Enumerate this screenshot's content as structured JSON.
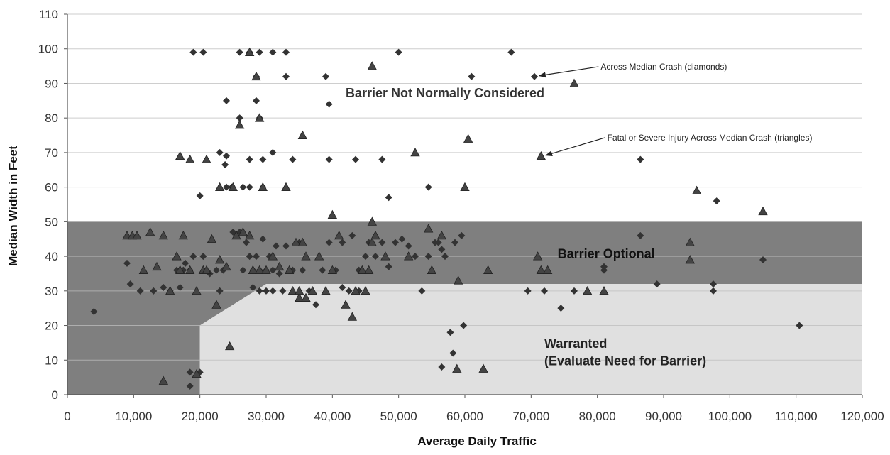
{
  "chart_data": {
    "type": "scatter",
    "xlabel": "Average Daily Traffic",
    "ylabel": "Median Width in Feet",
    "xlim": [
      0,
      120000
    ],
    "ylim": [
      0,
      110
    ],
    "x_ticks": [
      0,
      10000,
      20000,
      30000,
      40000,
      50000,
      60000,
      70000,
      80000,
      90000,
      100000,
      110000,
      120000
    ],
    "x_tick_labels": [
      "0",
      "10,000",
      "20,000",
      "30,000",
      "40,000",
      "50,000",
      "60,000",
      "70,000",
      "80,000",
      "90,000",
      "100,000",
      "110,000",
      "120,000"
    ],
    "y_ticks": [
      0,
      10,
      20,
      30,
      40,
      50,
      60,
      70,
      80,
      90,
      100,
      110
    ],
    "y_tick_labels": [
      "0",
      "10",
      "20",
      "30",
      "40",
      "50",
      "60",
      "70",
      "80",
      "90",
      "100",
      "110"
    ],
    "grid": "horizontal",
    "colors": {
      "background": "#ffffff",
      "optional_zone": "#7f7f7f",
      "warranted_zone": "#e0e0e0",
      "marker": "#333333",
      "grid": "#bdbdbd"
    },
    "regions": [
      {
        "label": "Barrier Optional",
        "points": [
          [
            0,
            0
          ],
          [
            0,
            50
          ],
          [
            120000,
            50
          ],
          [
            120000,
            32
          ],
          [
            30000,
            32
          ],
          [
            20000,
            20
          ],
          [
            20000,
            0
          ]
        ]
      },
      {
        "label": "Warranted",
        "sublabel": "(Evaluate Need for Barrier)",
        "points": [
          [
            20000,
            0
          ],
          [
            20000,
            20
          ],
          [
            30000,
            32
          ],
          [
            120000,
            32
          ],
          [
            120000,
            0
          ]
        ]
      }
    ],
    "region_text": [
      {
        "text": "Barrier Not Normally Considered",
        "x": 57000,
        "y": 86,
        "color": "#333333",
        "weight": "bold"
      },
      {
        "text": "Barrier Optional",
        "x": 74000,
        "y": 39.5,
        "color": "#111111",
        "weight": "bold"
      },
      {
        "text": "Warranted",
        "x": 72000,
        "y": 13.5,
        "color": "#222222",
        "weight": "bold"
      },
      {
        "text": "(Evaluate Need for Barrier)",
        "x": 72000,
        "y": 8.5,
        "color": "#222222",
        "weight": "bold"
      }
    ],
    "annotations": [
      {
        "text": "Across Median Crash (diamonds)",
        "text_x": 80500,
        "text_y": 94,
        "arrow_x": 70800,
        "arrow_y": 92
      },
      {
        "text": "Fatal or Severe Injury Across Median Crash  (triangles)",
        "text_x": 81500,
        "text_y": 73.5,
        "arrow_x": 71800,
        "arrow_y": 69
      }
    ],
    "series": [
      {
        "marker": "diamond",
        "points": [
          [
            4000,
            24
          ],
          [
            9000,
            38
          ],
          [
            9500,
            32
          ],
          [
            11000,
            30
          ],
          [
            13000,
            30
          ],
          [
            14500,
            31
          ],
          [
            15500,
            30
          ],
          [
            16500,
            36
          ],
          [
            17000,
            31
          ],
          [
            17500,
            36
          ],
          [
            17800,
            38
          ],
          [
            18500,
            36
          ],
          [
            19000,
            99
          ],
          [
            20500,
            99
          ],
          [
            26000,
            99
          ],
          [
            27500,
            99
          ],
          [
            29000,
            99
          ],
          [
            31000,
            99
          ],
          [
            33000,
            99
          ],
          [
            50000,
            99
          ],
          [
            67000,
            99
          ],
          [
            28500,
            92
          ],
          [
            33000,
            92
          ],
          [
            39000,
            92
          ],
          [
            61000,
            92
          ],
          [
            70500,
            92
          ],
          [
            24000,
            85
          ],
          [
            28500,
            85
          ],
          [
            39500,
            84
          ],
          [
            26000,
            80
          ],
          [
            29000,
            80
          ],
          [
            23000,
            70
          ],
          [
            24000,
            69
          ],
          [
            31000,
            70
          ],
          [
            47500,
            68
          ],
          [
            27500,
            68
          ],
          [
            29500,
            68
          ],
          [
            34000,
            68
          ],
          [
            39500,
            68
          ],
          [
            43500,
            68
          ],
          [
            86500,
            68
          ],
          [
            23800,
            66.5
          ],
          [
            24000,
            60
          ],
          [
            24800,
            60
          ],
          [
            26500,
            60
          ],
          [
            27500,
            60
          ],
          [
            29500,
            60
          ],
          [
            54500,
            60
          ],
          [
            20000,
            57.5
          ],
          [
            48500,
            57
          ],
          [
            98000,
            56
          ],
          [
            19000,
            40
          ],
          [
            20500,
            40
          ],
          [
            21500,
            35
          ],
          [
            22500,
            36
          ],
          [
            23000,
            30
          ],
          [
            23500,
            36
          ],
          [
            25000,
            47
          ],
          [
            26000,
            47
          ],
          [
            26500,
            36
          ],
          [
            27000,
            44
          ],
          [
            27500,
            40
          ],
          [
            28000,
            36
          ],
          [
            28500,
            40
          ],
          [
            29000,
            36
          ],
          [
            29500,
            45
          ],
          [
            30000,
            36
          ],
          [
            30500,
            40
          ],
          [
            31000,
            36
          ],
          [
            31500,
            43
          ],
          [
            32000,
            35
          ],
          [
            33000,
            43
          ],
          [
            34000,
            36
          ],
          [
            35000,
            44
          ],
          [
            35500,
            36
          ],
          [
            36500,
            30
          ],
          [
            37500,
            26
          ],
          [
            38500,
            36
          ],
          [
            39500,
            44
          ],
          [
            40500,
            36
          ],
          [
            41500,
            44
          ],
          [
            42500,
            30
          ],
          [
            43000,
            46
          ],
          [
            44000,
            36
          ],
          [
            45000,
            40
          ],
          [
            45500,
            44
          ],
          [
            46500,
            40
          ],
          [
            47500,
            44
          ],
          [
            48500,
            37
          ],
          [
            49500,
            44
          ],
          [
            50500,
            45
          ],
          [
            51500,
            43
          ],
          [
            52500,
            40
          ],
          [
            53500,
            30
          ],
          [
            54500,
            40
          ],
          [
            55500,
            44
          ],
          [
            56500,
            42
          ],
          [
            57000,
            40
          ],
          [
            58500,
            44
          ],
          [
            59500,
            46
          ],
          [
            28000,
            31
          ],
          [
            29000,
            30
          ],
          [
            30000,
            30
          ],
          [
            31000,
            30
          ],
          [
            32500,
            30
          ],
          [
            41500,
            31
          ],
          [
            44000,
            30
          ],
          [
            69500,
            30
          ],
          [
            72000,
            30
          ],
          [
            74500,
            25
          ],
          [
            76500,
            30
          ],
          [
            81000,
            36
          ],
          [
            81000,
            37
          ],
          [
            86500,
            46
          ],
          [
            89000,
            32
          ],
          [
            97500,
            30
          ],
          [
            97500,
            32
          ],
          [
            105000,
            39
          ],
          [
            110500,
            20
          ],
          [
            56500,
            8
          ],
          [
            57800,
            18
          ],
          [
            58200,
            12
          ],
          [
            59800,
            20
          ],
          [
            18500,
            6.5
          ],
          [
            18500,
            2.5
          ],
          [
            20000,
            6.5
          ],
          [
            56000,
            44
          ]
        ]
      },
      {
        "marker": "triangle",
        "points": [
          [
            14500,
            4
          ],
          [
            24500,
            14
          ],
          [
            19500,
            6
          ],
          [
            43000,
            22.5
          ],
          [
            58800,
            7.5
          ],
          [
            62800,
            7.5
          ],
          [
            9000,
            46
          ],
          [
            9800,
            46
          ],
          [
            10500,
            46
          ],
          [
            11500,
            36
          ],
          [
            12500,
            47
          ],
          [
            13500,
            37
          ],
          [
            14500,
            46
          ],
          [
            15500,
            30
          ],
          [
            16500,
            40
          ],
          [
            17000,
            36
          ],
          [
            17500,
            46
          ],
          [
            18500,
            36
          ],
          [
            19500,
            30
          ],
          [
            20500,
            36
          ],
          [
            21000,
            36
          ],
          [
            21800,
            45
          ],
          [
            22500,
            26
          ],
          [
            23000,
            39
          ],
          [
            24000,
            37
          ],
          [
            25500,
            46
          ],
          [
            26500,
            47
          ],
          [
            27500,
            46
          ],
          [
            28000,
            36
          ],
          [
            29000,
            36
          ],
          [
            30000,
            36
          ],
          [
            31000,
            40
          ],
          [
            32000,
            37
          ],
          [
            33500,
            36
          ],
          [
            34500,
            44
          ],
          [
            35500,
            44
          ],
          [
            36000,
            40
          ],
          [
            37000,
            30
          ],
          [
            38000,
            40
          ],
          [
            39000,
            30
          ],
          [
            40000,
            36
          ],
          [
            41000,
            46
          ],
          [
            42000,
            26
          ],
          [
            43500,
            30
          ],
          [
            44500,
            36
          ],
          [
            45000,
            30
          ],
          [
            45500,
            36
          ],
          [
            46000,
            44
          ],
          [
            46500,
            46
          ],
          [
            48000,
            40
          ],
          [
            51500,
            40
          ],
          [
            54500,
            48
          ],
          [
            55000,
            36
          ],
          [
            56500,
            46
          ],
          [
            59000,
            33
          ],
          [
            63500,
            36
          ],
          [
            71000,
            40
          ],
          [
            71500,
            36
          ],
          [
            72500,
            36
          ],
          [
            78500,
            30
          ],
          [
            81000,
            30
          ],
          [
            94000,
            44
          ],
          [
            94000,
            39
          ],
          [
            95000,
            59
          ],
          [
            105000,
            53
          ],
          [
            34000,
            30
          ],
          [
            35000,
            28
          ],
          [
            36000,
            28
          ],
          [
            35000,
            30
          ],
          [
            17000,
            69
          ],
          [
            18500,
            68
          ],
          [
            21000,
            68
          ],
          [
            23000,
            60
          ],
          [
            25000,
            60
          ],
          [
            26000,
            78
          ],
          [
            27500,
            99
          ],
          [
            28500,
            92
          ],
          [
            29000,
            80
          ],
          [
            29500,
            60
          ],
          [
            33000,
            60
          ],
          [
            35500,
            75
          ],
          [
            40000,
            52
          ],
          [
            46000,
            50
          ],
          [
            52500,
            70
          ],
          [
            60500,
            74
          ],
          [
            71500,
            69
          ],
          [
            76500,
            90
          ],
          [
            60000,
            60
          ],
          [
            46000,
            95
          ]
        ]
      }
    ]
  }
}
